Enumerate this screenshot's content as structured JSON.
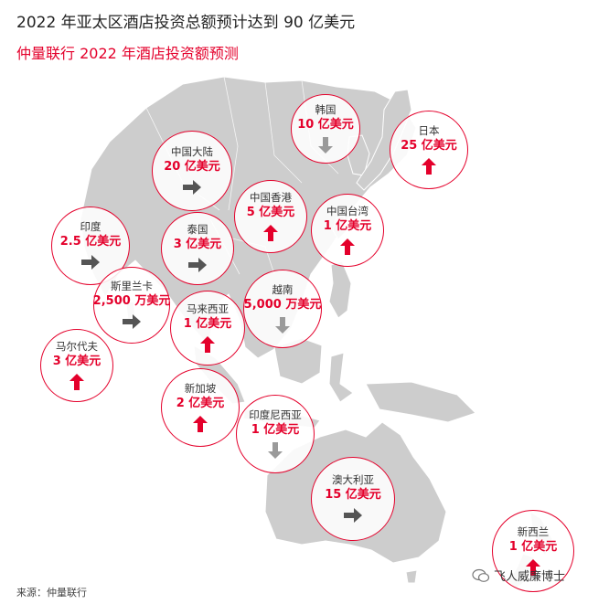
{
  "title": "2022 年亚太区酒店投资总额预计达到 90 亿美元",
  "subtitle": "仲量联行 2022 年酒店投资额预测",
  "source": "来源：仲量联行",
  "watermark": "飞人威廉博士",
  "colors": {
    "accent": "#e4002b",
    "up": "#e4002b",
    "flat": "#555555",
    "down": "#9a9a9a",
    "land": "#cdcdcd"
  },
  "bubbles": [
    {
      "name": "韩国",
      "value": "10 亿美元",
      "trend": "down"
    },
    {
      "name": "日本",
      "value": "25 亿美元",
      "trend": "up"
    },
    {
      "name": "中国大陆",
      "value": "20 亿美元",
      "trend": "flat"
    },
    {
      "name": "中国香港",
      "value": "5 亿美元",
      "trend": "up"
    },
    {
      "name": "中国台湾",
      "value": "1 亿美元",
      "trend": "up"
    },
    {
      "name": "印度",
      "value": "2.5 亿美元",
      "trend": "flat"
    },
    {
      "name": "泰国",
      "value": "3 亿美元",
      "trend": "flat"
    },
    {
      "name": "斯里兰卡",
      "value": "2,500 万美元",
      "trend": "flat"
    },
    {
      "name": "越南",
      "value": "5,000 万美元",
      "trend": "down"
    },
    {
      "name": "马来西亚",
      "value": "1 亿美元",
      "trend": "up"
    },
    {
      "name": "马尔代夫",
      "value": "3 亿美元",
      "trend": "up"
    },
    {
      "name": "新加坡",
      "value": "2 亿美元",
      "trend": "up"
    },
    {
      "name": "印度尼西亚",
      "value": "1 亿美元",
      "trend": "down"
    },
    {
      "name": "澳大利亚",
      "value": "15 亿美元",
      "trend": "flat"
    },
    {
      "name": "新西兰",
      "value": "1 亿美元",
      "trend": "up"
    }
  ]
}
